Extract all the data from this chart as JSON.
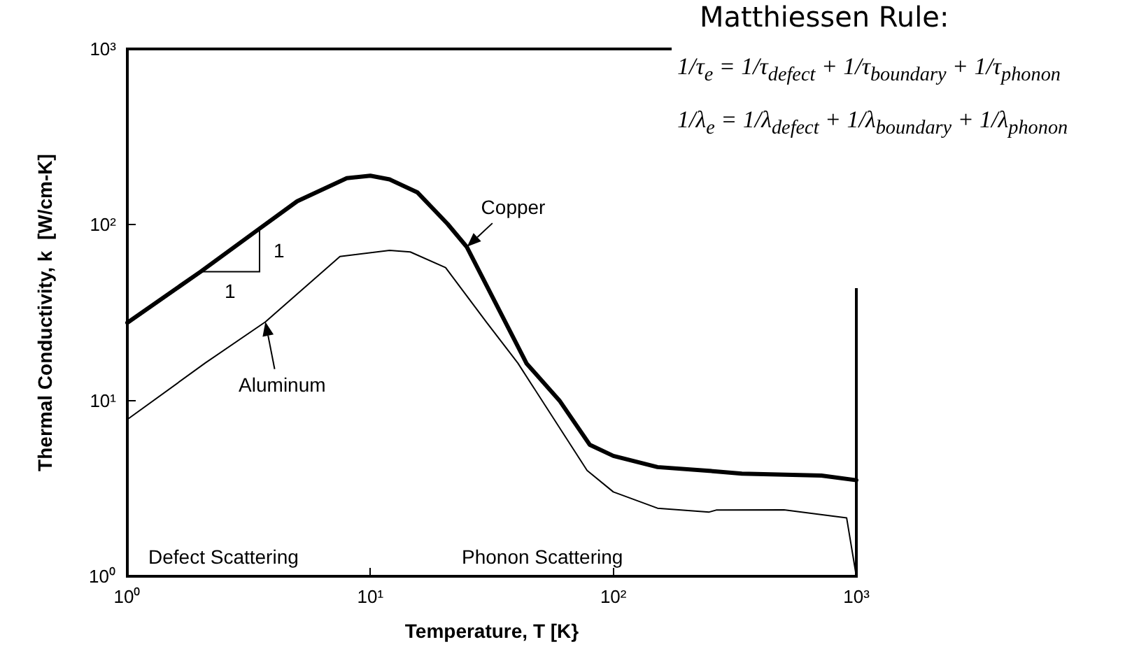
{
  "chart_data": {
    "type": "line",
    "xlabel": "Temperature, T [K}",
    "ylabel": "Thermal Conductivity, k  [W/cm-K]",
    "log": "xy",
    "xlim": [
      1,
      1000
    ],
    "ylim": [
      1,
      1000
    ],
    "xticks": [
      {
        "value": 1,
        "label": "10⁰"
      },
      {
        "value": 10,
        "label": "10¹"
      },
      {
        "value": 100,
        "label": "10²"
      },
      {
        "value": 1000,
        "label": "10³"
      }
    ],
    "yticks": [
      {
        "value": 1,
        "label": "10⁰"
      },
      {
        "value": 10,
        "label": "10¹"
      },
      {
        "value": 100,
        "label": "10²"
      },
      {
        "value": 1000,
        "label": "10³"
      }
    ],
    "marker": "none",
    "line_style": "solid",
    "series": [
      {
        "color": "#000000",
        "x": [
          1,
          2,
          3.5,
          5,
          8,
          10,
          12,
          15.6,
          20.8,
          24.9,
          44,
          60,
          80,
          100,
          152,
          248,
          338,
          718,
          1000
        ],
        "values": [
          27.7,
          54,
          95,
          136,
          184,
          190,
          181,
          153,
          101,
          75,
          16.2,
          10,
          5.6,
          4.84,
          4.18,
          3.98,
          3.84,
          3.74,
          3.52
        ]
      },
      {
        "color": "#000000",
        "x": [
          1,
          2.1,
          3.7,
          7.5,
          12,
          14.6,
          20.4,
          30,
          40.5,
          46,
          78,
          100,
          152,
          248,
          265,
          504,
          912,
          1000
        ],
        "values": [
          7.8,
          16.4,
          28,
          66,
          71.5,
          70,
          57,
          28,
          16.3,
          12.4,
          4.0,
          3.02,
          2.44,
          2.32,
          2.38,
          2.39,
          2.15,
          1.0
        ]
      }
    ],
    "annotations": [
      "Matthiessen Rule:",
      "1/τ$_{e}$ = 1/τ$_{defect}$ + 1/τ$_{boundary}$ + 1/τ$_{phonon}$",
      "1/λ$_{e}$ = 1/λ$_{defect}$ + 1/λ$_{boundary}$ + 1/λ$_{phonon}$",
      {
        "text": "Copper",
        "x": 25,
        "y": 75
      },
      {
        "text": "Aluminum",
        "x": 3.7,
        "y": 28
      },
      {
        "text": "1",
        "x": 3.5,
        "y": 95
      },
      {
        "text": "1",
        "x": 2,
        "y": 54
      },
      "Defect Scattering",
      "Phonon Scattering"
    ]
  }
}
